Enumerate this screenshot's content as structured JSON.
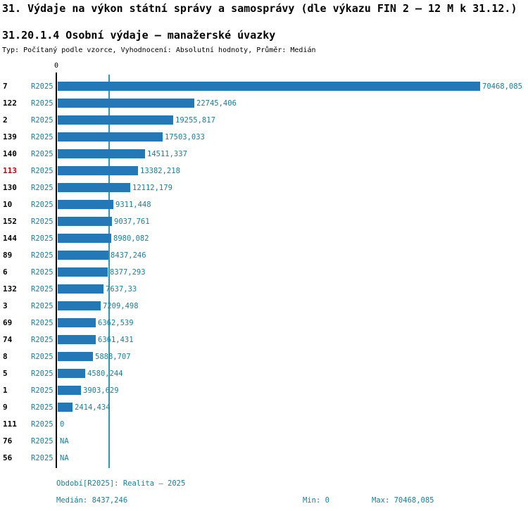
{
  "header": {
    "title": "31. Výdaje na výkon státní správy a samosprávy (dle výkazu FIN 2 – 12 M k 31.12.)",
    "subtitle": "31.20.1.4 Osobní výdaje – manažerské úvazky",
    "meta": "Typ: Počítaný podle vzorce, Vyhodnocení: Absolutní hodnoty, Průměr: Medián"
  },
  "chart_data": {
    "type": "bar",
    "orientation": "horizontal",
    "title": "31.20.1.4 Osobní výdaje – manažerské úvazky",
    "axis_zero_label": "0",
    "series_label": "R2025",
    "categories": [
      "7",
      "122",
      "2",
      "139",
      "140",
      "113",
      "130",
      "10",
      "152",
      "144",
      "89",
      "6",
      "132",
      "3",
      "69",
      "74",
      "8",
      "5",
      "1",
      "9",
      "111",
      "76",
      "56"
    ],
    "values": [
      70468.085,
      22745.406,
      19255.817,
      17503.033,
      14511.337,
      13382.218,
      12112.179,
      9311.448,
      9037.761,
      8980.082,
      8437.246,
      8377.293,
      7637.33,
      7209.498,
      6362.539,
      6361.431,
      5888.707,
      4580.244,
      3903.629,
      2414.434,
      0,
      null,
      null
    ],
    "value_labels": [
      "70468,085",
      "22745,406",
      "19255,817",
      "17503,033",
      "14511,337",
      "13382,218",
      "12112,179",
      "9311,448",
      "9037,761",
      "8980,082",
      "8437,246",
      "8377,293",
      "7637,33",
      "7209,498",
      "6362,539",
      "6361,431",
      "5888,707",
      "4580,244",
      "3903,629",
      "2414,434",
      "0",
      "NA",
      "NA"
    ],
    "highlighted_category": "113",
    "median": 8437.246,
    "min": 0,
    "max": 70468.085,
    "xlim": [
      0,
      70468.085
    ],
    "grid": false,
    "legend_position": "none",
    "colors": {
      "bar": "#2478b5",
      "label_text": "#17809f",
      "highlight": "#cc0000",
      "median_line": "#2e98b8",
      "axis": "#000000"
    }
  },
  "footer": {
    "period": "Období[R2025]: Realita – 2025",
    "median": "Medián: 8437,246",
    "min": "Min: 0",
    "max": "Max: 70468,085"
  }
}
